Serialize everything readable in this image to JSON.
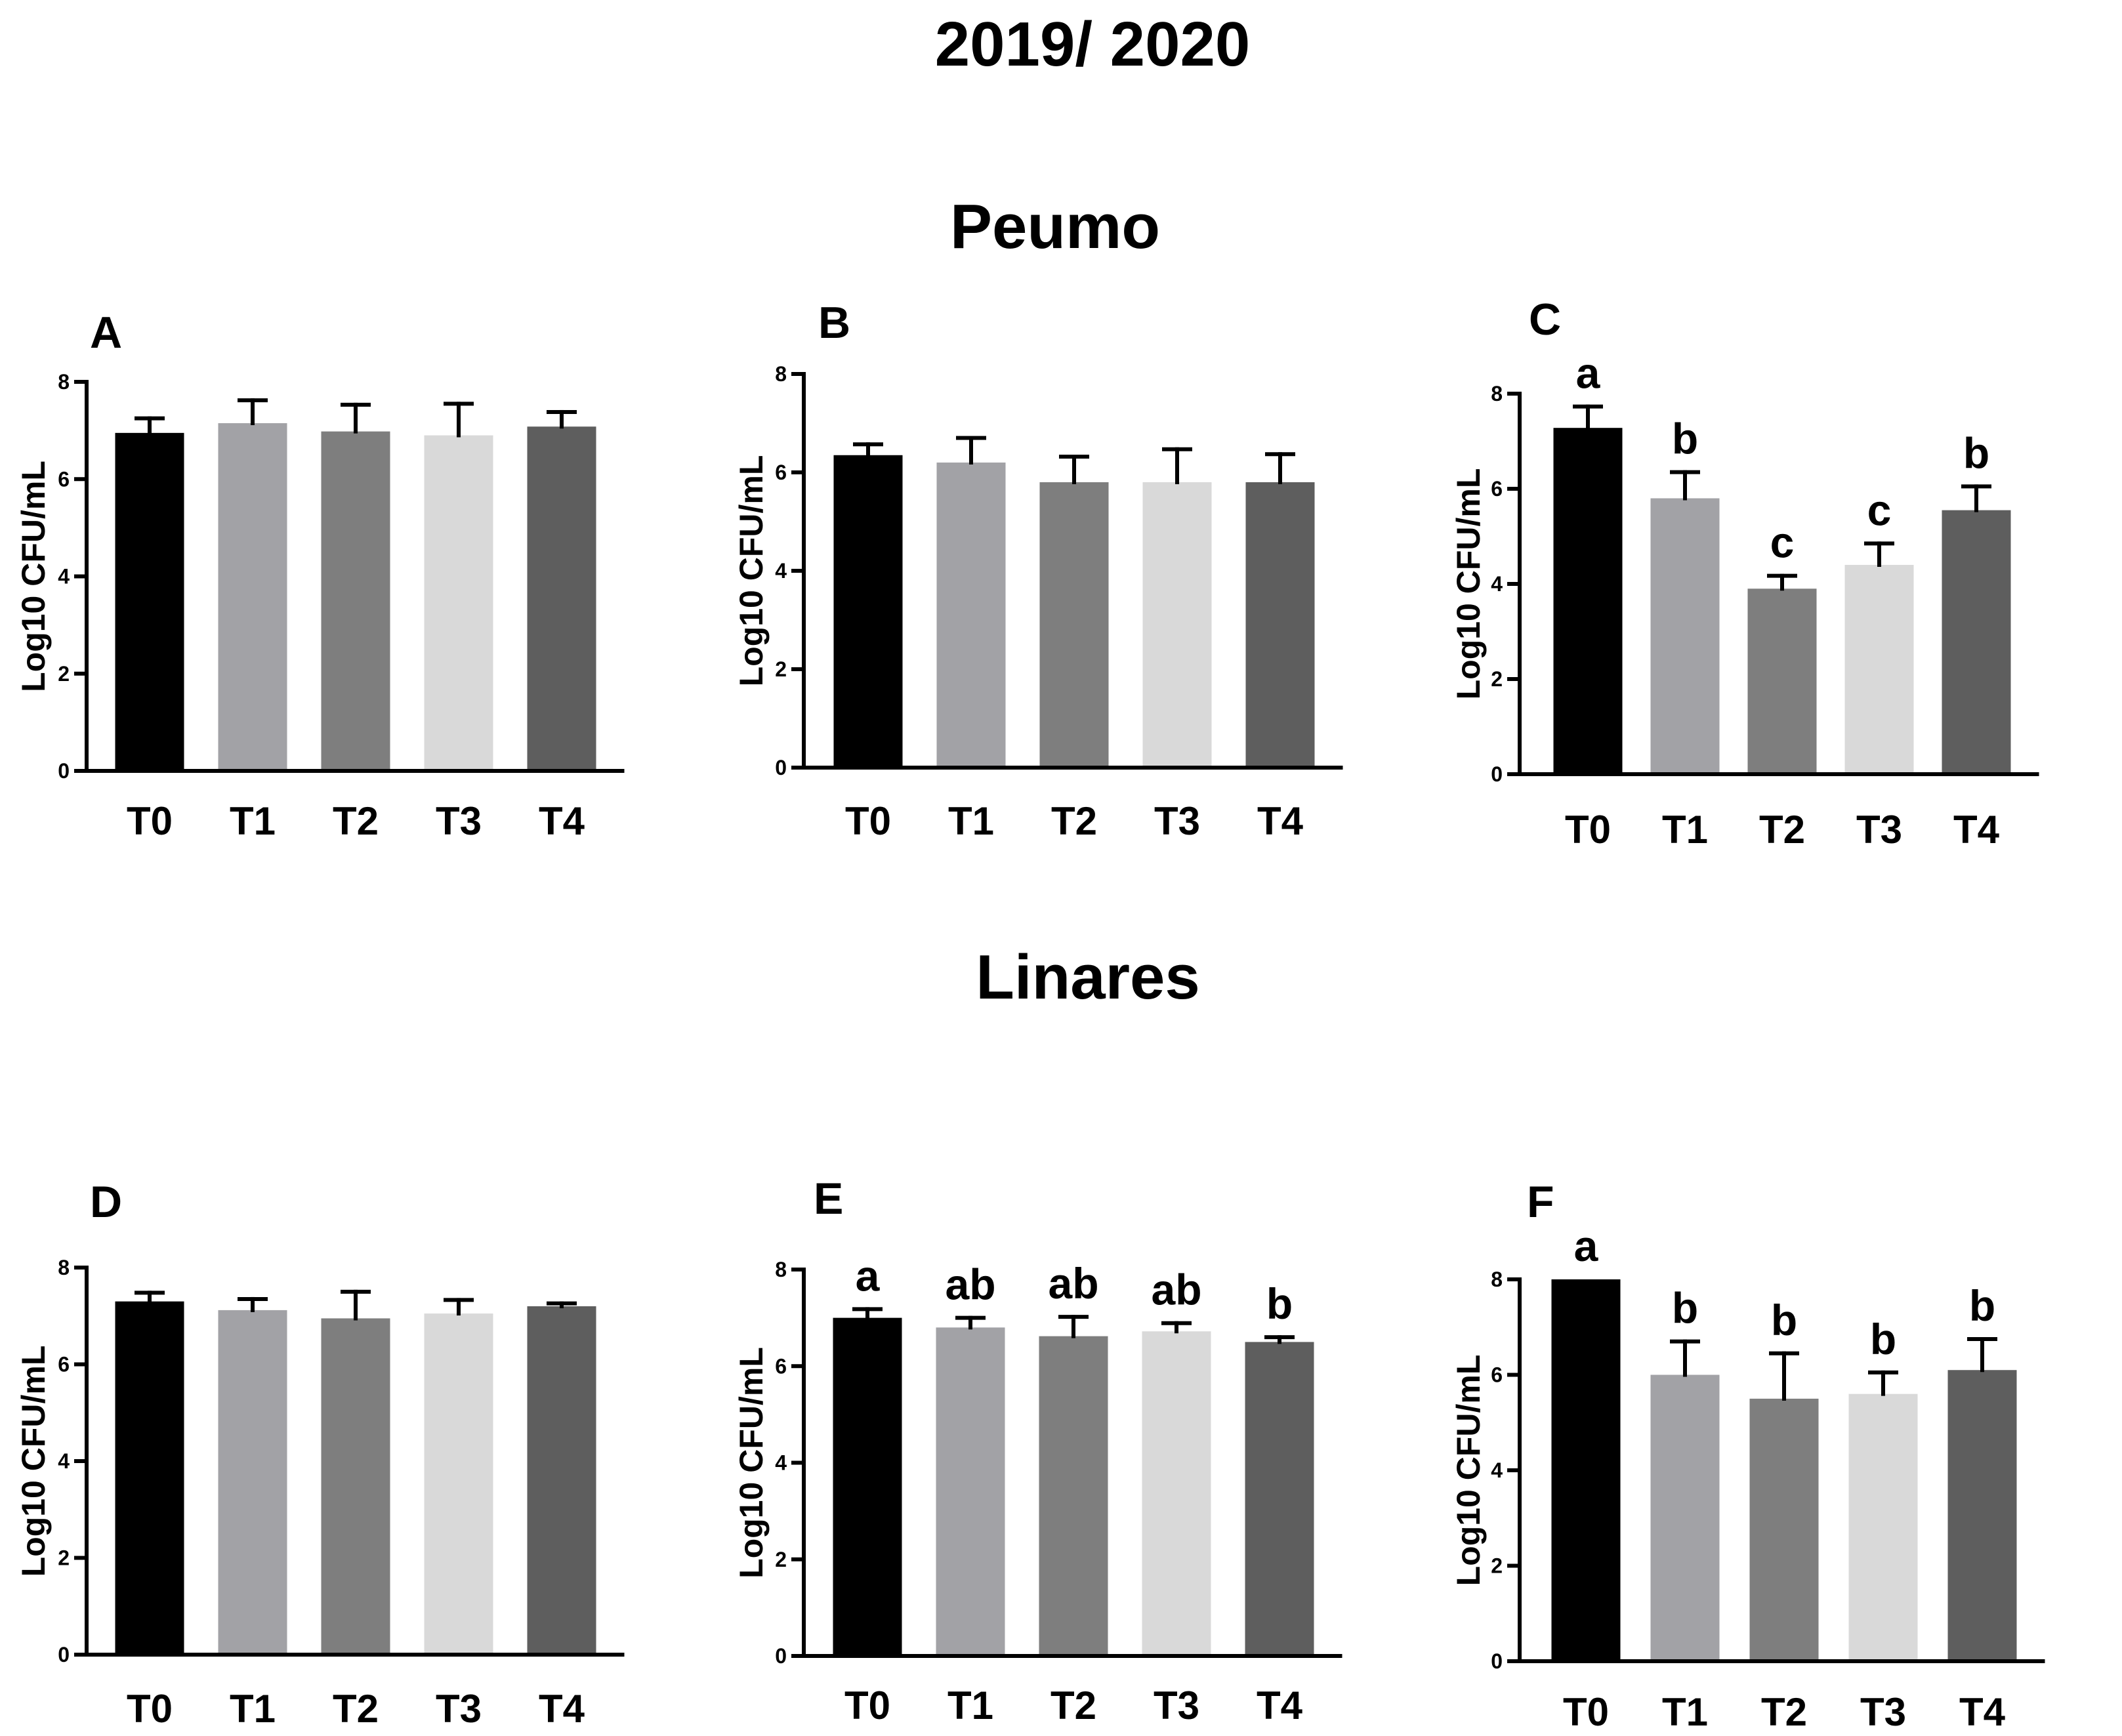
{
  "figure": {
    "title": "2019/ 2020",
    "sections": [
      "Peumo",
      "Linares"
    ]
  },
  "colors": {
    "T0": "#000000",
    "T1": "#a2a2a6",
    "T2": "#7e7e7e",
    "T3": "#d9d9d9",
    "T4": "#5e5e5e"
  },
  "chart_data": [
    {
      "panel": "A",
      "section": "Peumo",
      "type": "bar",
      "categories": [
        "T0",
        "T1",
        "T2",
        "T3",
        "T4"
      ],
      "values": [
        6.95,
        7.15,
        6.98,
        6.9,
        7.08
      ],
      "error": [
        0.3,
        0.47,
        0.55,
        0.65,
        0.3
      ],
      "letters": [],
      "ylabel": "Log10 CFU/mL",
      "ylim": [
        0,
        8
      ],
      "yticks": [
        0,
        2,
        4,
        6,
        8
      ]
    },
    {
      "panel": "B",
      "section": "Peumo",
      "type": "bar",
      "categories": [
        "T0",
        "T1",
        "T2",
        "T3",
        "T4"
      ],
      "values": [
        6.35,
        6.2,
        5.8,
        5.8,
        5.8
      ],
      "error": [
        0.22,
        0.5,
        0.52,
        0.67,
        0.57
      ],
      "letters": [],
      "ylabel": "Log10 CFU/mL",
      "ylim": [
        0,
        8
      ],
      "yticks": [
        0,
        2,
        4,
        6,
        8
      ]
    },
    {
      "panel": "C",
      "section": "Peumo",
      "type": "bar",
      "categories": [
        "T0",
        "T1",
        "T2",
        "T3",
        "T4"
      ],
      "values": [
        7.28,
        5.8,
        3.9,
        4.4,
        5.55
      ],
      "error": [
        0.45,
        0.55,
        0.27,
        0.45,
        0.5
      ],
      "letters": [
        "a",
        "b",
        "c",
        "c",
        "b"
      ],
      "ylabel": "Log10 CFU/mL",
      "ylim": [
        0,
        8
      ],
      "yticks": [
        0,
        2,
        4,
        6,
        8
      ]
    },
    {
      "panel": "D",
      "section": "Linares",
      "type": "bar",
      "categories": [
        "T0",
        "T1",
        "T2",
        "T3",
        "T4"
      ],
      "values": [
        7.3,
        7.12,
        6.95,
        7.05,
        7.2
      ],
      "error": [
        0.18,
        0.23,
        0.55,
        0.28,
        0.06
      ],
      "letters": [],
      "ylabel": "Log10 CFU/mL",
      "ylim": [
        0,
        8
      ],
      "yticks": [
        0,
        2,
        4,
        6,
        8
      ]
    },
    {
      "panel": "E",
      "section": "Linares",
      "type": "bar",
      "categories": [
        "T0",
        "T1",
        "T2",
        "T3",
        "T4"
      ],
      "values": [
        7.0,
        6.8,
        6.62,
        6.72,
        6.5
      ],
      "error": [
        0.18,
        0.2,
        0.4,
        0.17,
        0.1
      ],
      "letters": [
        "a",
        "ab",
        "ab",
        "ab",
        "b"
      ],
      "ylabel": "Log10 CFU/mL",
      "ylim": [
        0,
        8
      ],
      "yticks": [
        0,
        2,
        4,
        6,
        8
      ]
    },
    {
      "panel": "F",
      "section": "Linares",
      "type": "bar",
      "categories": [
        "T0",
        "T1",
        "T2",
        "T3",
        "T4"
      ],
      "values": [
        8.0,
        6.0,
        5.5,
        5.6,
        6.1
      ],
      "error": [
        0.0,
        0.7,
        0.95,
        0.45,
        0.65
      ],
      "letters": [
        "a",
        "b",
        "b",
        "b",
        "b"
      ],
      "ylabel": "Log10 CFU/mL",
      "ylim": [
        0,
        8
      ],
      "yticks": [
        0,
        2,
        4,
        6,
        8
      ]
    }
  ]
}
